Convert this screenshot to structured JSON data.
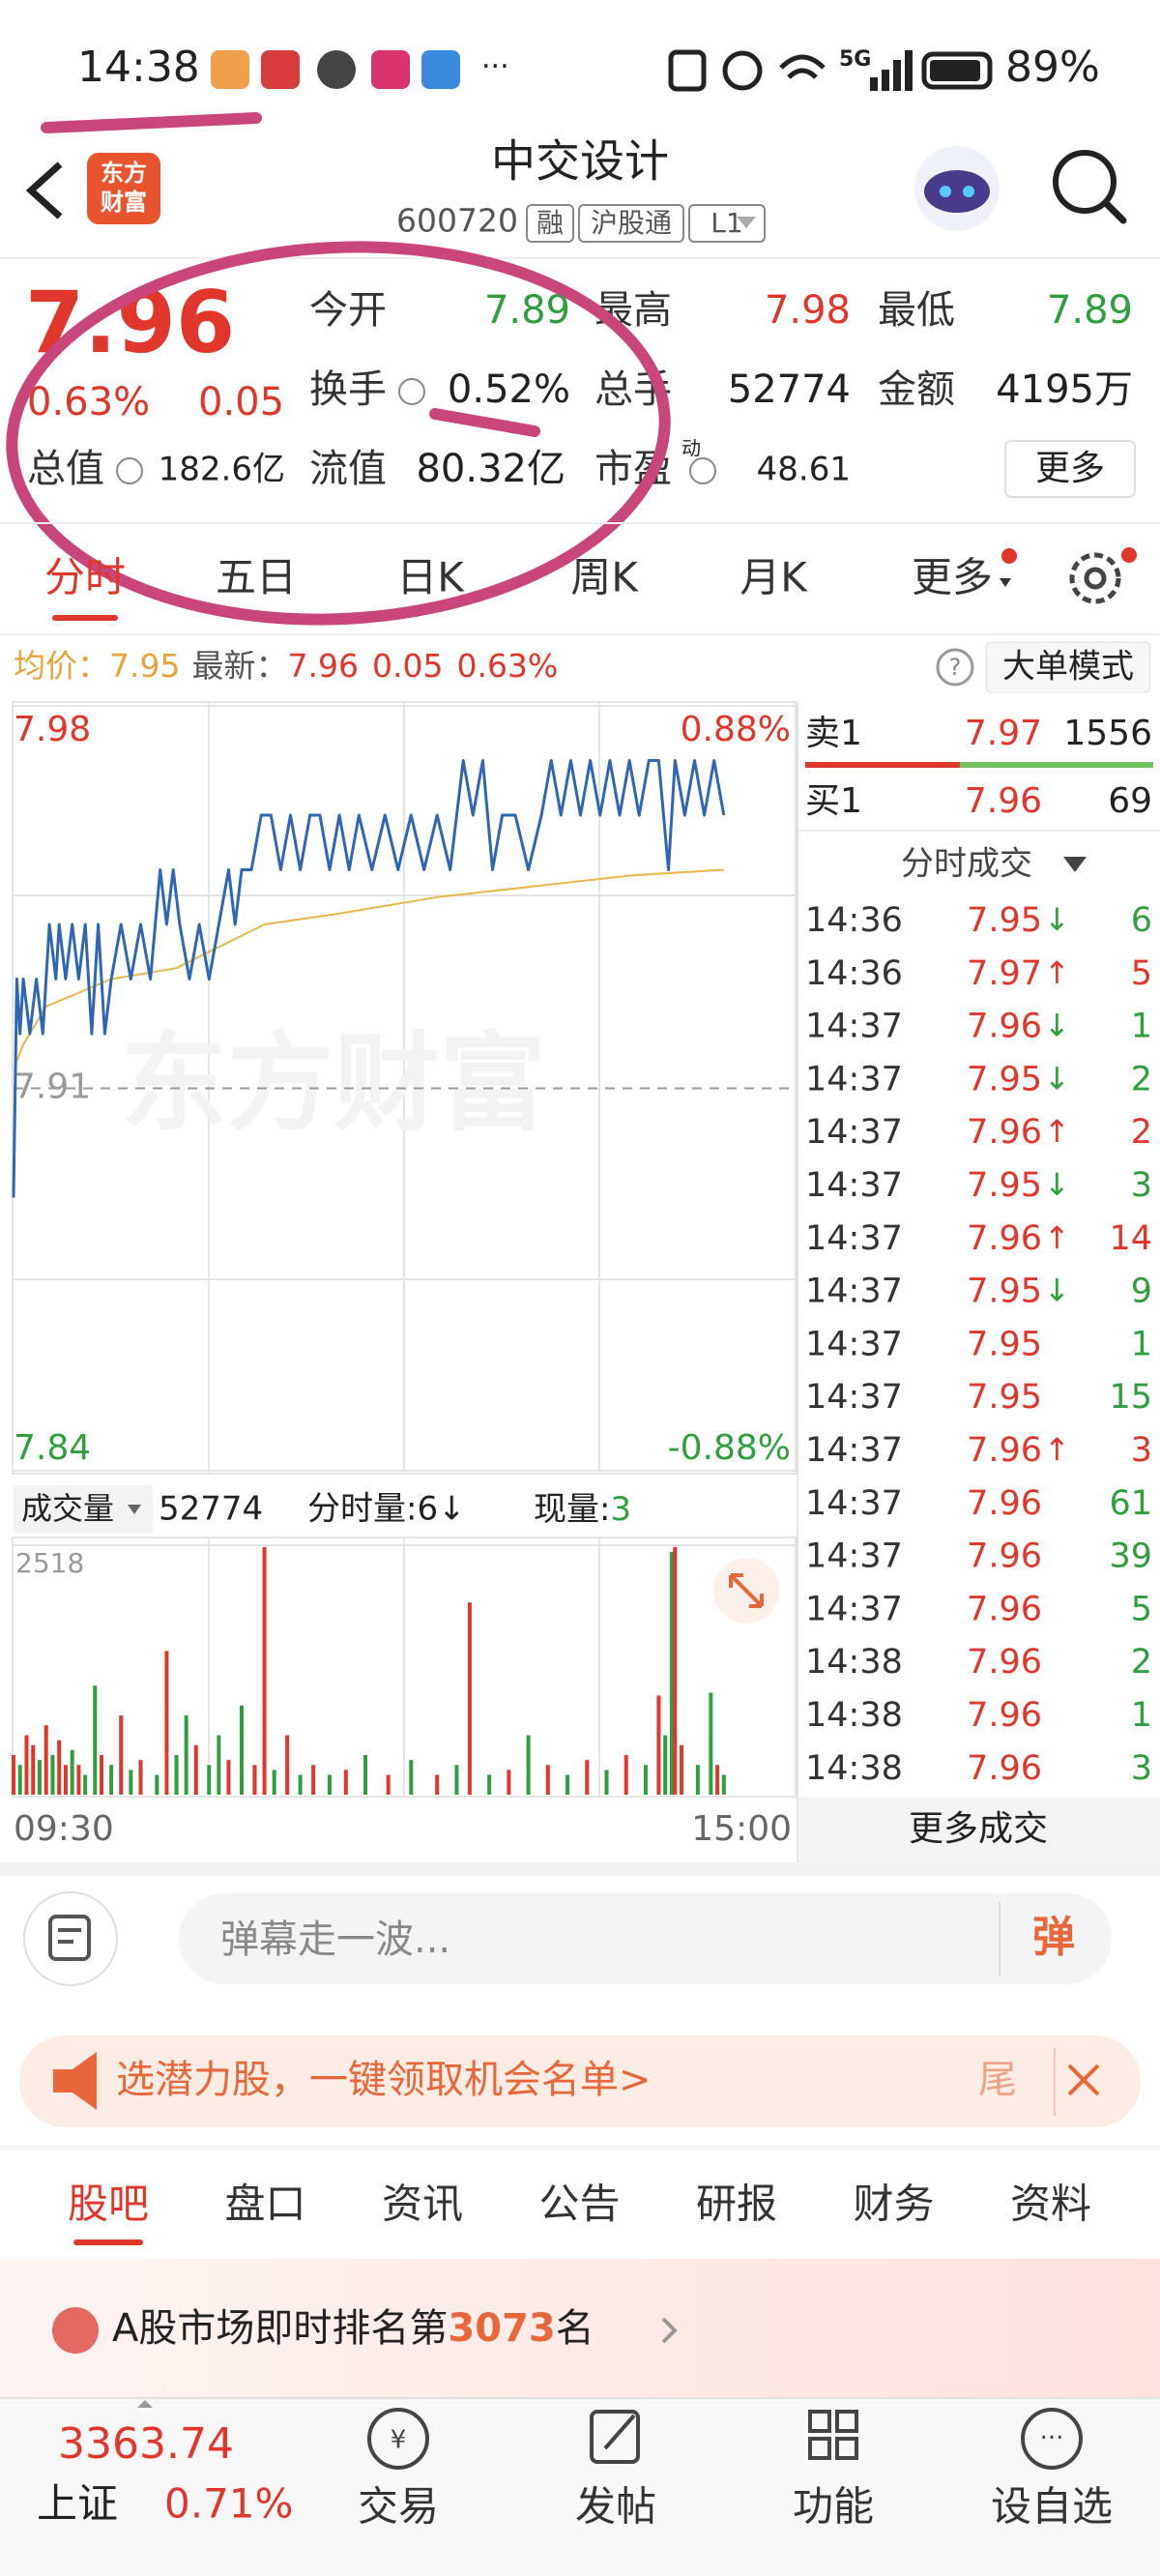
{
  "status_bar": {
    "time": "14:38",
    "network": "5G",
    "battery": "89%"
  },
  "header": {
    "logo": [
      "东方",
      "财富"
    ],
    "title": "中交设计",
    "code": "600720",
    "tags": [
      "融",
      "沪股通",
      "L1"
    ]
  },
  "quote": {
    "price": "7.96",
    "change_pct": "0.63%",
    "change": "0.05",
    "fields": [
      {
        "label": "今开",
        "value": "7.89",
        "color": "#2f9e3f"
      },
      {
        "label": "最高",
        "value": "7.98",
        "color": "#e0362c"
      },
      {
        "label": "最低",
        "value": "7.89",
        "color": "#2f9e3f"
      },
      {
        "label": "换手",
        "value": "0.52%",
        "color": "#222222"
      },
      {
        "label": "总手",
        "value": "52774",
        "color": "#222222"
      },
      {
        "label": "金额",
        "value": "4195万",
        "color": "#222222"
      },
      {
        "label": "总值",
        "value": "182.6亿",
        "color": "#222222"
      },
      {
        "label": "流值",
        "value": "80.32亿",
        "color": "#222222"
      },
      {
        "label": "市盈",
        "sup": "动",
        "value": "48.61",
        "color": "#222222"
      }
    ],
    "more": "更多"
  },
  "tabs": {
    "items": [
      "分时",
      "五日",
      "日K",
      "周K",
      "月K",
      "更多"
    ],
    "active": 0
  },
  "info": {
    "avg_label": "均价：",
    "avg": "7.95",
    "last_label": "最新：",
    "last": "7.96",
    "change": "0.05",
    "change_pct": "0.63%",
    "help": "?",
    "mode": "大单模式"
  },
  "watermark": "东方财富",
  "volume_bar": {
    "label": "成交量",
    "total": "52774",
    "minute_vol": "分时量:6↓",
    "current_label": "现量:",
    "current": "3"
  },
  "chart_data": [
    {
      "type": "line",
      "xlim": [
        0,
        240
      ],
      "ylim": [
        7.84,
        7.98
      ],
      "yticks": [
        7.84,
        7.91,
        7.98
      ],
      "y2lim": [
        -0.88,
        0.88
      ],
      "y2ticks": [
        {
          "value": -0.88,
          "label": "-0.88%"
        },
        {
          "value": 0.88,
          "label": "0.88%"
        }
      ],
      "series": [
        {
          "color": "#2f66b3",
          "x": [
            0,
            1,
            2,
            3,
            5,
            7,
            9,
            11,
            13,
            14,
            16,
            18,
            20,
            22,
            24,
            26,
            28,
            30,
            33,
            36,
            39,
            42,
            45,
            47,
            49,
            51,
            54,
            57,
            60,
            63,
            66,
            68,
            70,
            73,
            76,
            79,
            82,
            85,
            88,
            91,
            94,
            97,
            100,
            103,
            106,
            110,
            114,
            118,
            122,
            126,
            130,
            134,
            138,
            141,
            144,
            147,
            150,
            154,
            158,
            162,
            165,
            168,
            171,
            174,
            177,
            180,
            183,
            186,
            189,
            192,
            195,
            198,
            201,
            203,
            206,
            209,
            212,
            215,
            218
          ],
          "values": [
            7.89,
            7.93,
            7.92,
            7.93,
            7.92,
            7.93,
            7.92,
            7.94,
            7.93,
            7.94,
            7.93,
            7.94,
            7.93,
            7.94,
            7.92,
            7.94,
            7.92,
            7.93,
            7.94,
            7.93,
            7.94,
            7.93,
            7.95,
            7.94,
            7.95,
            7.94,
            7.93,
            7.94,
            7.93,
            7.94,
            7.95,
            7.94,
            7.95,
            7.95,
            7.96,
            7.96,
            7.95,
            7.96,
            7.95,
            7.96,
            7.96,
            7.95,
            7.96,
            7.95,
            7.96,
            7.95,
            7.96,
            7.95,
            7.96,
            7.95,
            7.96,
            7.95,
            7.97,
            7.96,
            7.97,
            7.95,
            7.96,
            7.96,
            7.95,
            7.96,
            7.97,
            7.96,
            7.97,
            7.96,
            7.97,
            7.96,
            7.97,
            7.96,
            7.97,
            7.96,
            7.97,
            7.97,
            7.95,
            7.97,
            7.96,
            7.97,
            7.96,
            7.97,
            7.96
          ]
        },
        {
          "color": "#e8b64a",
          "x": [
            1,
            3,
            10,
            30,
            50,
            60,
            77,
            100,
            130,
            160,
            190,
            218
          ],
          "values": [
            7.915,
            7.918,
            7.925,
            7.93,
            7.932,
            7.935,
            7.94,
            7.942,
            7.945,
            7.947,
            7.949,
            7.95
          ]
        }
      ]
    },
    {
      "type": "bar",
      "xlim": [
        0,
        240
      ],
      "ylim": [
        0,
        2518
      ],
      "yticks": [
        2518
      ],
      "xticks": [
        {
          "value": 0,
          "label": "09:30"
        },
        {
          "value": 240,
          "label": "15:00"
        }
      ],
      "x": [
        0,
        2,
        4,
        6,
        8,
        10,
        12,
        14,
        16,
        18,
        20,
        22,
        25,
        27,
        30,
        33,
        36,
        39,
        44,
        47,
        50,
        53,
        56,
        60,
        63,
        66,
        70,
        74,
        77,
        80,
        84,
        88,
        92,
        97,
        102,
        108,
        115,
        122,
        130,
        136,
        140,
        146,
        152,
        158,
        164,
        170,
        176,
        182,
        188,
        194,
        198,
        200,
        202,
        203,
        205,
        210,
        214,
        216,
        218
      ],
      "values": [
        400,
        300,
        600,
        500,
        350,
        700,
        400,
        550,
        300,
        450,
        300,
        200,
        1100,
        400,
        300,
        800,
        250,
        350,
        200,
        1450,
        400,
        800,
        500,
        300,
        600,
        350,
        900,
        300,
        2500,
        250,
        600,
        200,
        300,
        200,
        250,
        400,
        200,
        350,
        200,
        300,
        1940,
        200,
        250,
        600,
        300,
        200,
        350,
        250,
        400,
        300,
        1000,
        600,
        2450,
        2500,
        500,
        300,
        1030,
        300,
        200
      ],
      "colors": [
        "#e0362c",
        "#2f9e3f",
        "#e0362c",
        "#e0362c",
        "#2f9e3f",
        "#e0362c",
        "#2f9e3f",
        "#e0362c",
        "#e0362c",
        "#2f9e3f",
        "#e0362c",
        "#2f9e3f",
        "#2f9e3f",
        "#e0362c",
        "#2f9e3f",
        "#e0362c",
        "#2f9e3f",
        "#e0362c",
        "#2f9e3f",
        "#e0362c",
        "#2f9e3f",
        "#2f9e3f",
        "#e0362c",
        "#2f9e3f",
        "#2f9e3f",
        "#e0362c",
        "#2f9e3f",
        "#e0362c",
        "#e0362c",
        "#2f9e3f",
        "#e0362c",
        "#2f9e3f",
        "#e0362c",
        "#2f9e3f",
        "#e0362c",
        "#2f9e3f",
        "#e0362c",
        "#2f9e3f",
        "#e0362c",
        "#2f9e3f",
        "#e0362c",
        "#2f9e3f",
        "#e0362c",
        "#2f9e3f",
        "#e0362c",
        "#2f9e3f",
        "#e0362c",
        "#2f9e3f",
        "#e0362c",
        "#2f9e3f",
        "#e0362c",
        "#2f9e3f",
        "#2f9e3f",
        "#e0362c",
        "#e0362c",
        "#2f9e3f",
        "#2f9e3f",
        "#e0362c",
        "#2f9e3f"
      ]
    }
  ],
  "order_book": [
    {
      "side": "卖1",
      "price": "7.97",
      "volume": "1556"
    },
    {
      "side": "买1",
      "price": "7.96",
      "volume": "69"
    }
  ],
  "trades": {
    "title": "分时成交",
    "rows": [
      {
        "time": "14:36",
        "price": "7.95",
        "arrow": "↓",
        "volume": "6",
        "color": "#2f9e3f"
      },
      {
        "time": "14:36",
        "price": "7.97",
        "arrow": "↑",
        "volume": "5",
        "color": "#e0362c"
      },
      {
        "time": "14:37",
        "price": "7.96",
        "arrow": "↓",
        "volume": "1",
        "color": "#2f9e3f"
      },
      {
        "time": "14:37",
        "price": "7.95",
        "arrow": "↓",
        "volume": "2",
        "color": "#2f9e3f"
      },
      {
        "time": "14:37",
        "price": "7.96",
        "arrow": "↑",
        "volume": "2",
        "color": "#e0362c"
      },
      {
        "time": "14:37",
        "price": "7.95",
        "arrow": "↓",
        "volume": "3",
        "color": "#2f9e3f"
      },
      {
        "time": "14:37",
        "price": "7.96",
        "arrow": "↑",
        "volume": "14",
        "color": "#e0362c"
      },
      {
        "time": "14:37",
        "price": "7.95",
        "arrow": "↓",
        "volume": "9",
        "color": "#2f9e3f"
      },
      {
        "time": "14:37",
        "price": "7.95",
        "volume": "1",
        "color": "#2f9e3f"
      },
      {
        "time": "14:37",
        "price": "7.95",
        "volume": "15",
        "color": "#2f9e3f"
      },
      {
        "time": "14:37",
        "price": "7.96",
        "arrow": "↑",
        "volume": "3",
        "color": "#e0362c"
      },
      {
        "time": "14:37",
        "price": "7.96",
        "volume": "61",
        "color": "#2f9e3f"
      },
      {
        "time": "14:37",
        "price": "7.96",
        "volume": "39",
        "color": "#2f9e3f"
      },
      {
        "time": "14:37",
        "price": "7.96",
        "volume": "5",
        "color": "#2f9e3f"
      },
      {
        "time": "14:38",
        "price": "7.96",
        "volume": "2",
        "color": "#2f9e3f"
      },
      {
        "time": "14:38",
        "price": "7.96",
        "volume": "1",
        "color": "#2f9e3f"
      },
      {
        "time": "14:38",
        "price": "7.96",
        "volume": "3",
        "color": "#2f9e3f"
      }
    ],
    "more": "更多成交"
  },
  "comment": {
    "placeholder": "弹幕走一波...",
    "button": "弹"
  },
  "banner": {
    "text": "选潜力股，一键领取机会名单>",
    "tail": "尾"
  },
  "section_tabs": {
    "items": [
      "股吧",
      "盘口",
      "资讯",
      "公告",
      "研报",
      "财务",
      "资料"
    ],
    "active": 0
  },
  "rank": {
    "prefix": "A股市场即时排名第",
    "number": "3073",
    "suffix": "名"
  },
  "bottom_nav": {
    "index_value": "3363.74",
    "index_name": "上证",
    "index_change": "0.71%",
    "items": [
      "交易",
      "发帖",
      "功能",
      "设自选"
    ]
  }
}
